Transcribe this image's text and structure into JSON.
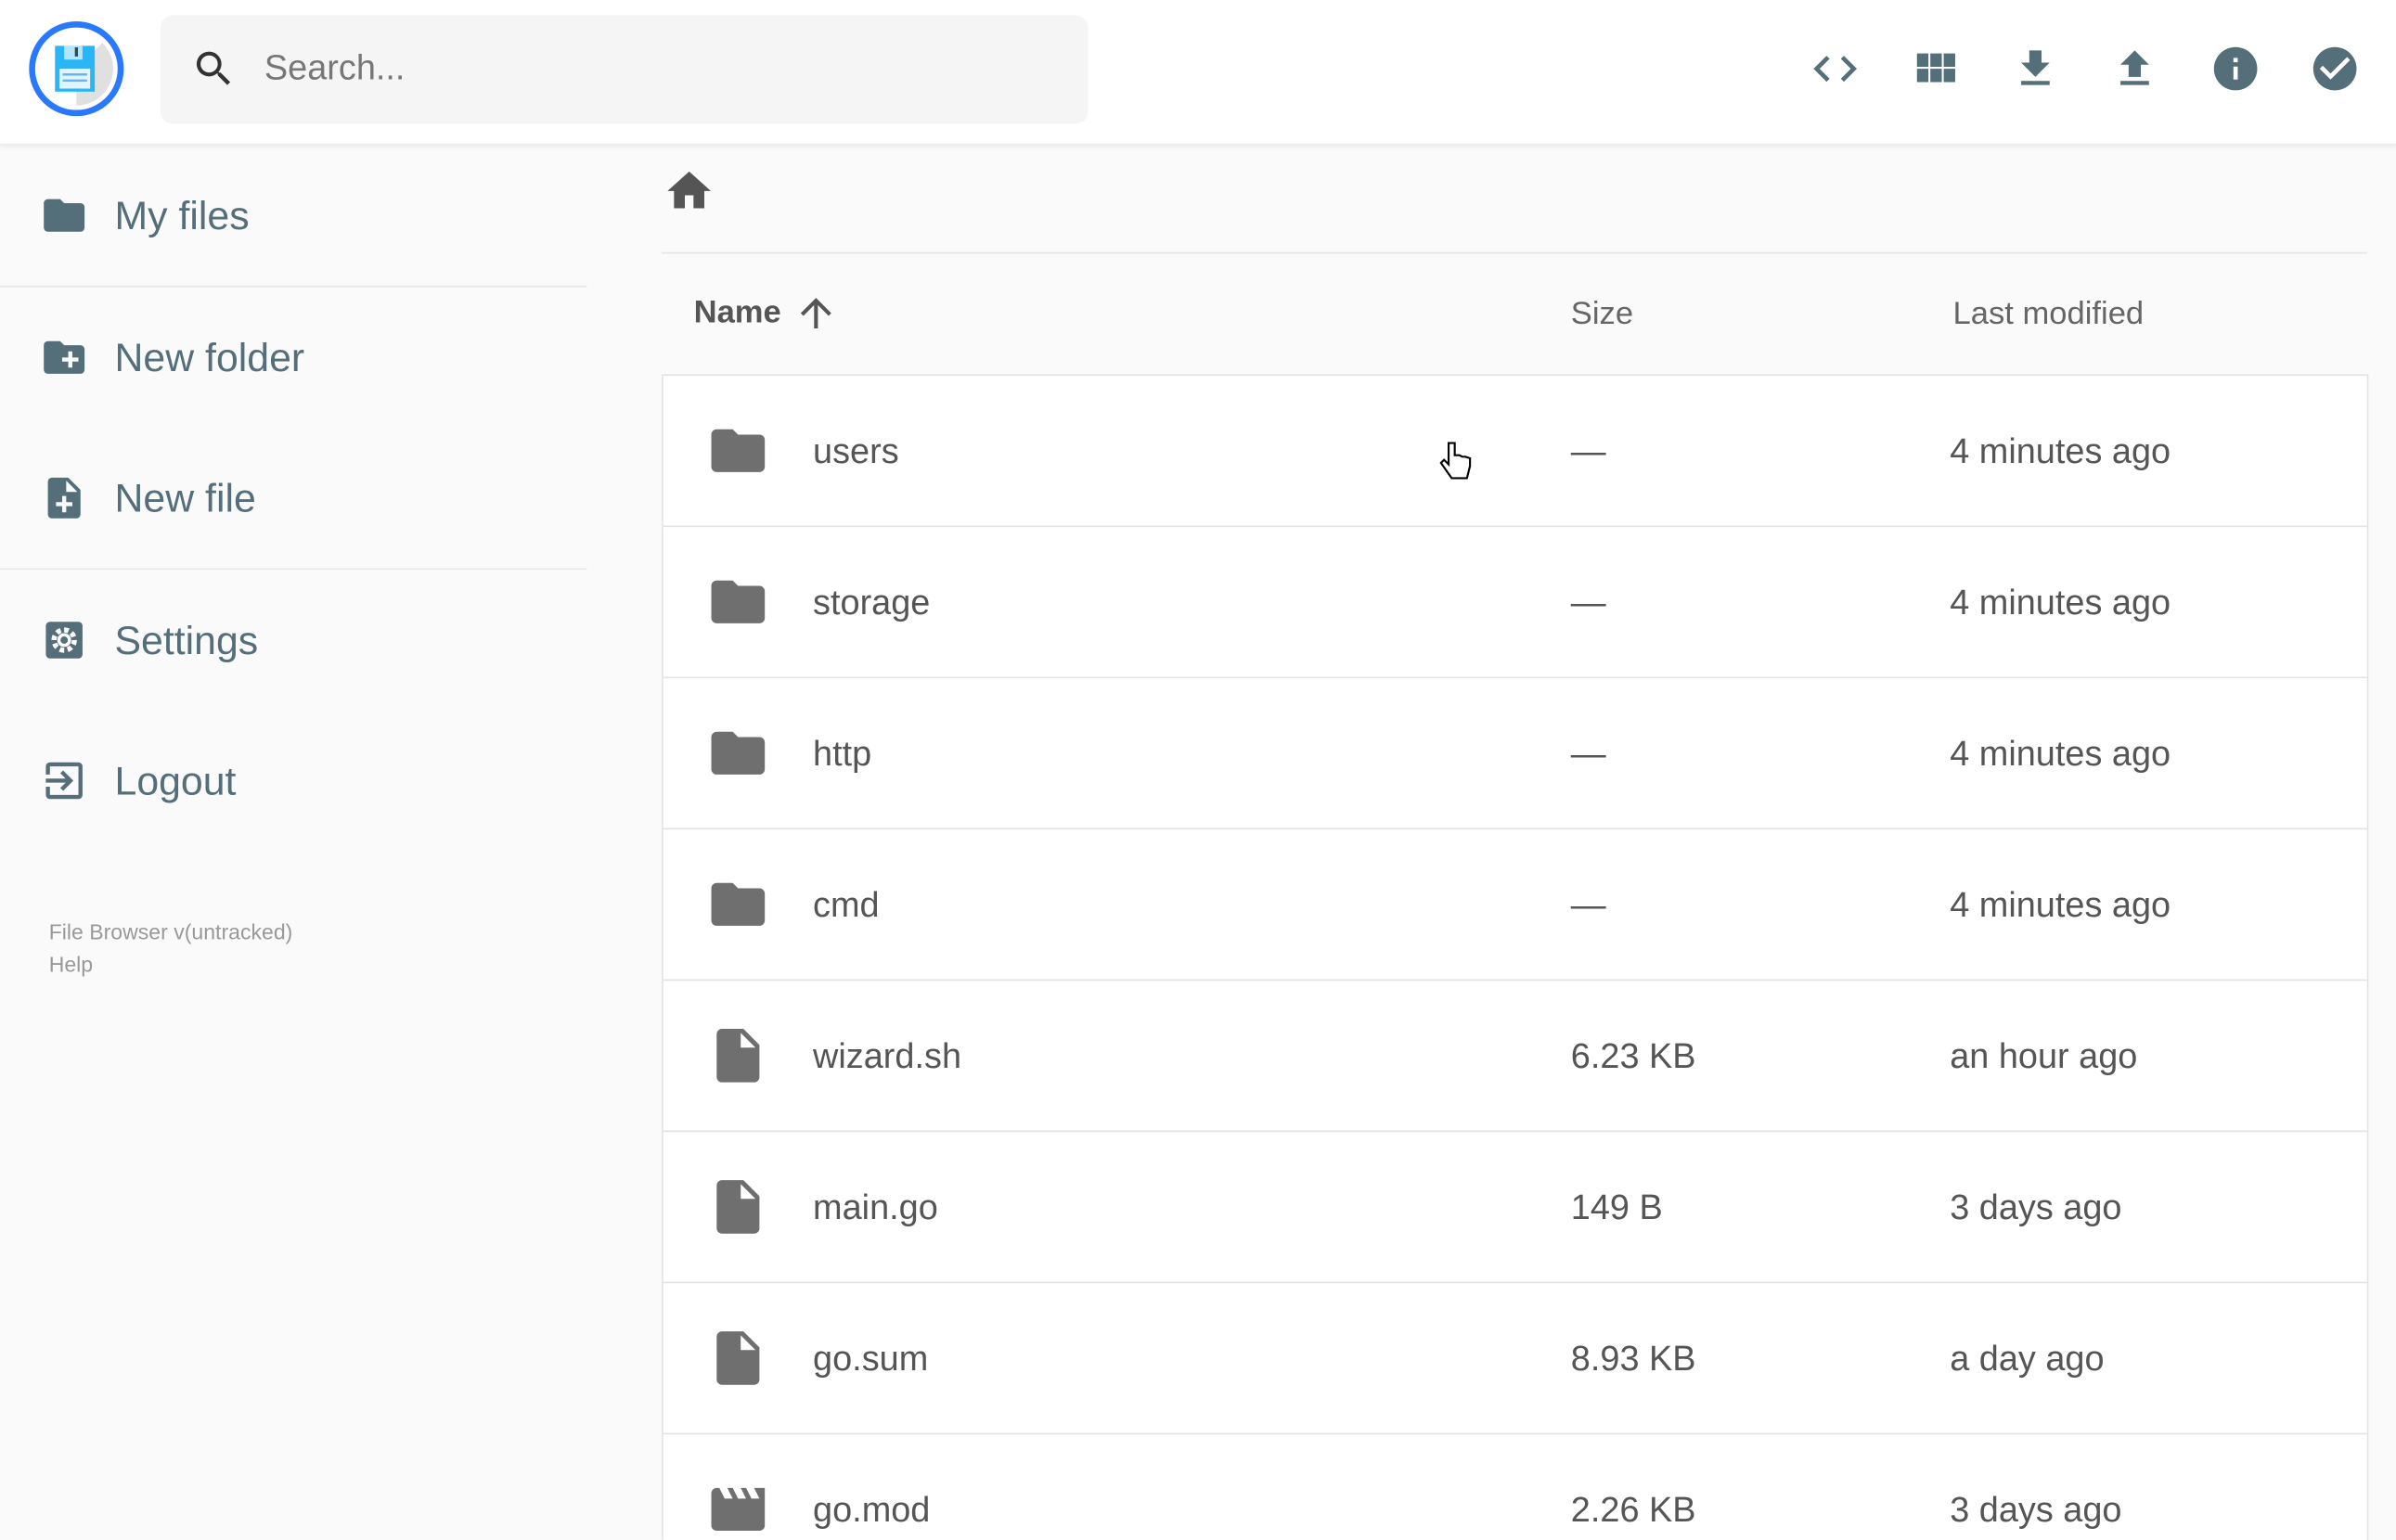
{
  "header": {
    "search_placeholder": "Search...",
    "icons": [
      "code-icon",
      "grid-view-icon",
      "download-icon",
      "upload-icon",
      "info-icon",
      "check-circle-icon"
    ],
    "icon_color": "#546e7a",
    "logo_ring_color": "#2979ff"
  },
  "sidebar": {
    "items": [
      {
        "label": "My files"
      },
      {
        "label": "New folder"
      },
      {
        "label": "New file"
      },
      {
        "label": "Settings"
      },
      {
        "label": "Logout"
      }
    ],
    "footer": {
      "version": "File Browser v(untracked)",
      "help": "Help"
    }
  },
  "table": {
    "columns": {
      "name": "Name",
      "size": "Size",
      "modified": "Last modified"
    },
    "sort": "name-ascending",
    "rows": [
      {
        "name": "users",
        "size": "—",
        "modified": "4 minutes ago",
        "type": "folder"
      },
      {
        "name": "storage",
        "size": "—",
        "modified": "4 minutes ago",
        "type": "folder"
      },
      {
        "name": "http",
        "size": "—",
        "modified": "4 minutes ago",
        "type": "folder"
      },
      {
        "name": "cmd",
        "size": "—",
        "modified": "4 minutes ago",
        "type": "folder"
      },
      {
        "name": "wizard.sh",
        "size": "6.23 KB",
        "modified": "an hour ago",
        "type": "file"
      },
      {
        "name": "main.go",
        "size": "149 B",
        "modified": "3 days ago",
        "type": "file"
      },
      {
        "name": "go.sum",
        "size": "8.93 KB",
        "modified": "a day ago",
        "type": "file"
      },
      {
        "name": "go.mod",
        "size": "2.26 KB",
        "modified": "3 days ago",
        "type": "video"
      }
    ]
  }
}
